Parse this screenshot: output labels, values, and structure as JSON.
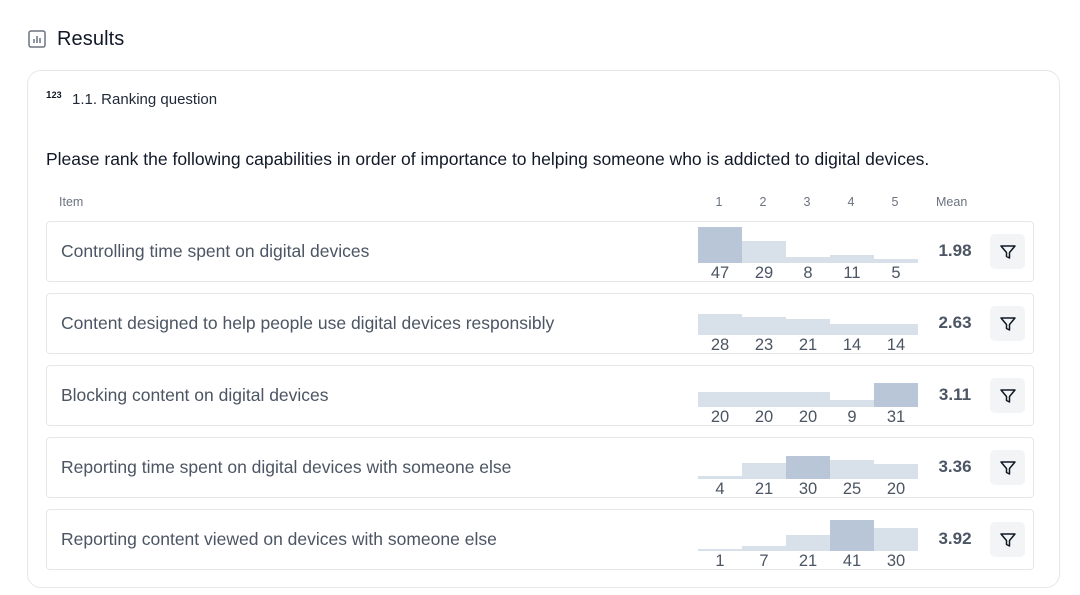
{
  "section": {
    "title": "Results",
    "icon": "bar-chart-icon"
  },
  "question": {
    "number_label": "1.1. Ranking question",
    "icon": "ranking-icon",
    "text": "Please rank the following capabilities in order of importance to helping someone who is addicted to digital devices."
  },
  "table": {
    "item_header": "Item",
    "rank_headers": [
      "1",
      "2",
      "3",
      "4",
      "5"
    ],
    "mean_header": "Mean",
    "rows": [
      {
        "label": "Controlling time spent on digital devices",
        "counts": [
          47,
          29,
          8,
          11,
          5
        ],
        "mean": "1.98"
      },
      {
        "label": "Content designed to help people use digital devices responsibly",
        "counts": [
          28,
          23,
          21,
          14,
          14
        ],
        "mean": "2.63"
      },
      {
        "label": "Blocking content on digital devices",
        "counts": [
          20,
          20,
          20,
          9,
          31
        ],
        "mean": "3.11"
      },
      {
        "label": "Reporting time spent on digital devices with someone else",
        "counts": [
          4,
          21,
          30,
          25,
          20
        ],
        "mean": "3.36"
      },
      {
        "label": "Reporting content viewed on devices with someone else",
        "counts": [
          1,
          7,
          21,
          41,
          30
        ],
        "mean": "3.92"
      }
    ]
  },
  "colors": {
    "bar_strong": "#b9c6d8",
    "bar_light": "#d8e0ea"
  }
}
